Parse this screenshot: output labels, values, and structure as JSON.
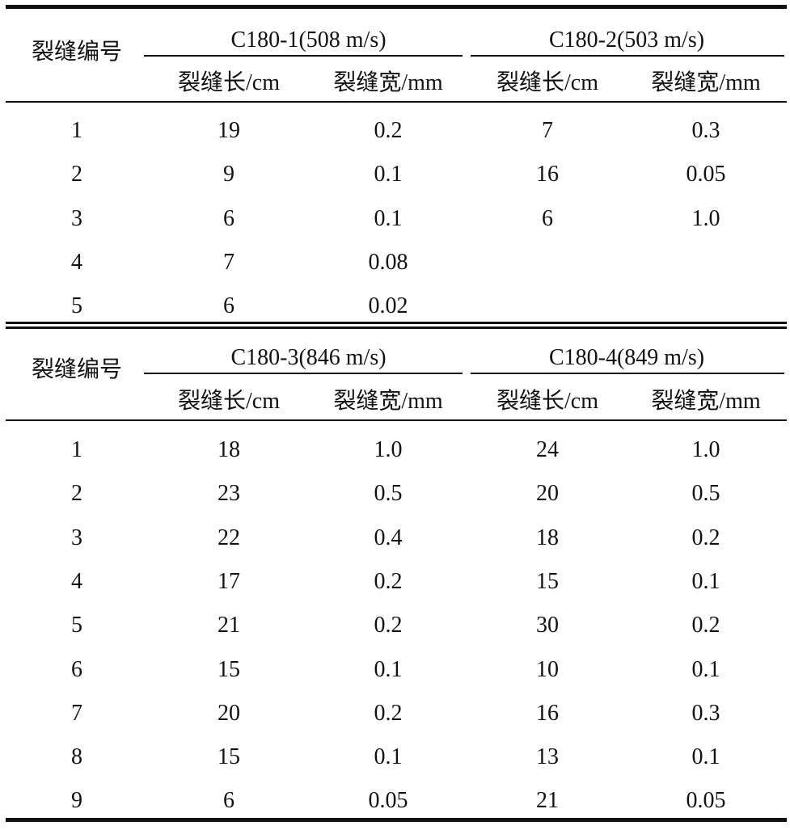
{
  "tables": [
    {
      "row_header": "裂缝编号",
      "groups": [
        {
          "title": "C180-1(508 m/s)",
          "sub": [
            "裂缝长/cm",
            "裂缝宽/mm"
          ]
        },
        {
          "title": "C180-2(503 m/s)",
          "sub": [
            "裂缝长/cm",
            "裂缝宽/mm"
          ]
        }
      ],
      "rows": [
        [
          "1",
          "19",
          "0.2",
          "7",
          "0.3"
        ],
        [
          "2",
          "9",
          "0.1",
          "16",
          "0.05"
        ],
        [
          "3",
          "6",
          "0.1",
          "6",
          "1.0"
        ],
        [
          "4",
          "7",
          "0.08",
          "",
          ""
        ],
        [
          "5",
          "6",
          "0.02",
          "",
          ""
        ]
      ]
    },
    {
      "row_header": "裂缝编号",
      "groups": [
        {
          "title": "C180-3(846 m/s)",
          "sub": [
            "裂缝长/cm",
            "裂缝宽/mm"
          ]
        },
        {
          "title": "C180-4(849 m/s)",
          "sub": [
            "裂缝长/cm",
            "裂缝宽/mm"
          ]
        }
      ],
      "rows": [
        [
          "1",
          "18",
          "1.0",
          "24",
          "1.0"
        ],
        [
          "2",
          "23",
          "0.5",
          "20",
          "0.5"
        ],
        [
          "3",
          "22",
          "0.4",
          "18",
          "0.2"
        ],
        [
          "4",
          "17",
          "0.2",
          "15",
          "0.1"
        ],
        [
          "5",
          "21",
          "0.2",
          "30",
          "0.2"
        ],
        [
          "6",
          "15",
          "0.1",
          "10",
          "0.1"
        ],
        [
          "7",
          "20",
          "0.2",
          "16",
          "0.3"
        ],
        [
          "8",
          "15",
          "0.1",
          "13",
          "0.1"
        ],
        [
          "9",
          "6",
          "0.05",
          "21",
          "0.05"
        ]
      ]
    }
  ]
}
